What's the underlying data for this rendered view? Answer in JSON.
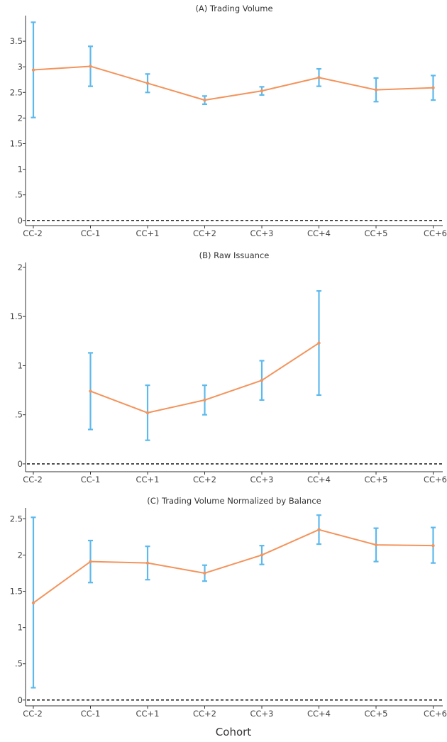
{
  "figure": {
    "xlabel": "Cohort"
  },
  "style": {
    "line_color": "#F4935B",
    "errorbar_color": "#5DB9EC",
    "axis_color": "#333333",
    "zero_line_color": "#000000"
  },
  "chart_data": [
    {
      "type": "line",
      "title": "(A) Trading Volume",
      "categories": [
        "CC-2",
        "CC-1",
        "CC+1",
        "CC+2",
        "CC+3",
        "CC+4",
        "CC+5",
        "CC+6"
      ],
      "series": [
        {
          "values": [
            2.94,
            3.01,
            2.68,
            2.35,
            2.53,
            2.79,
            2.55,
            2.59
          ],
          "ci_low": [
            2.01,
            2.62,
            2.5,
            2.27,
            2.45,
            2.62,
            2.32,
            2.35
          ],
          "ci_high": [
            3.87,
            3.4,
            2.86,
            2.43,
            2.61,
            2.96,
            2.78,
            2.83
          ]
        }
      ],
      "yticks": [
        0,
        0.5,
        1,
        1.5,
        2,
        2.5,
        3,
        3.5
      ],
      "ytick_labels": [
        "0",
        ".5",
        "1",
        "1.5",
        "2",
        "2.5",
        "3",
        "3.5"
      ],
      "ylim": [
        -0.1,
        4.0
      ],
      "zero_line": "dashed",
      "grid": false
    },
    {
      "type": "line",
      "title": "(B) Raw Issuance",
      "categories": [
        "CC-2",
        "CC-1",
        "CC+1",
        "CC+2",
        "CC+3",
        "CC+4",
        "CC+5",
        "CC+6"
      ],
      "series": [
        {
          "values": [
            null,
            0.74,
            0.52,
            0.65,
            0.85,
            1.23,
            null,
            null
          ],
          "ci_low": [
            null,
            0.35,
            0.24,
            0.5,
            0.65,
            0.7,
            null,
            null
          ],
          "ci_high": [
            null,
            1.13,
            0.8,
            0.8,
            1.05,
            1.76,
            null,
            null
          ]
        }
      ],
      "yticks": [
        0,
        0.5,
        1,
        1.5,
        2
      ],
      "ytick_labels": [
        "0",
        ".5",
        "1",
        "1.5",
        "2"
      ],
      "ylim": [
        -0.08,
        2.05
      ],
      "zero_line": "dashed",
      "grid": false
    },
    {
      "type": "line",
      "title": "(C) Trading Volume Normalized by Balance",
      "categories": [
        "CC-2",
        "CC-1",
        "CC+1",
        "CC+2",
        "CC+3",
        "CC+4",
        "CC+5",
        "CC+6"
      ],
      "series": [
        {
          "values": [
            1.34,
            1.91,
            1.89,
            1.75,
            2.0,
            2.35,
            2.14,
            2.13
          ],
          "ci_low": [
            0.17,
            1.62,
            1.66,
            1.64,
            1.87,
            2.15,
            1.91,
            1.89
          ],
          "ci_high": [
            2.52,
            2.2,
            2.12,
            1.86,
            2.13,
            2.55,
            2.37,
            2.38
          ]
        }
      ],
      "yticks": [
        0,
        0.5,
        1,
        1.5,
        2,
        2.5
      ],
      "ytick_labels": [
        "0",
        ".5",
        "1",
        "1.5",
        "2",
        "2.5"
      ],
      "ylim": [
        -0.08,
        2.65
      ],
      "zero_line": "dashed",
      "grid": false
    }
  ]
}
